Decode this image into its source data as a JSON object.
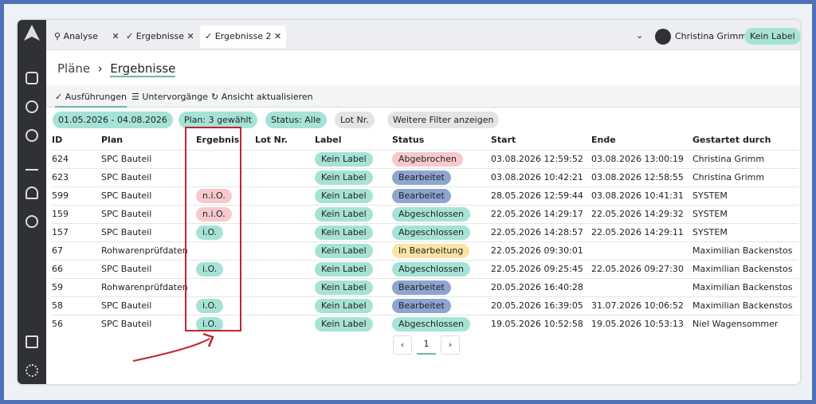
{
  "tabs": [
    "Analyse",
    "Ergebnisse",
    "Ergebnisse 2"
  ],
  "user": "Christina Grimm",
  "label_button": "Kein Label",
  "breadcrumb": [
    "Pläne",
    "Ergebnisse"
  ],
  "subtabs": [
    "Ausführungen",
    "Untervorgänge",
    "Ansicht aktualisieren"
  ],
  "filters": [
    "01.05.2026 - 04.08.2026",
    "Plan: 3 gewählt",
    "Status: Alle",
    "Lot Nr.",
    "Weitere Filter anzeigen"
  ],
  "table": {
    "columns": [
      "ID",
      "Plan",
      "Ergebnis",
      "Lot Nr.",
      "Label",
      "Status",
      "Start",
      "Ende",
      "Gestartet durch"
    ],
    "rows": [
      {
        "id": 624,
        "plan": "SPC Bauteil",
        "label": "Kein Label",
        "status": "Abgebrochen",
        "status_color": "#f7c9cc",
        "start": "03.08.2026 12:59:52",
        "end": "03.08.2026 13:00:19",
        "started_by": "Christina Grimm"
      },
      {
        "id": 623,
        "plan": "SPC Bauteil",
        "label": "Kein Label",
        "status": "Bearbeitet",
        "status_color": "#8ea5d2",
        "start": "03.08.2026 10:42:21",
        "end": "03.08.2026 12:58:55",
        "started_by": "Christina Grimm"
      },
      {
        "id": 599,
        "plan": "SPC Bauteil",
        "result": "n.i.O.",
        "result_color": "#f7c9cc",
        "label": "Kein Label",
        "status": "Bearbeitet",
        "status_color": "#8ea5d2",
        "start": "28.05.2026 12:59:44",
        "end": "03.08.2026 10:41:31",
        "started_by": "SYSTEM"
      },
      {
        "id": 159,
        "plan": "SPC Bauteil",
        "result": "n.i.O.",
        "result_color": "#f7c9cc",
        "label": "Kein Label",
        "status": "Abgeschlossen",
        "status_color": "#a6e3d6",
        "start": "22.05.2026 14:29:17",
        "end": "22.05.2026 14:29:32",
        "started_by": "SYSTEM"
      },
      {
        "id": 157,
        "plan": "SPC Bauteil",
        "result": "i.O.",
        "result_color": "#a6e3d6",
        "label": "Kein Label",
        "status": "Abgeschlossen",
        "status_color": "#a6e3d6",
        "start": "22.05.2026 14:28:57",
        "end": "22.05.2026 14:29:11",
        "started_by": "SYSTEM"
      },
      {
        "id": 67,
        "plan": "Rohwarenprüfdaten",
        "label": "Kein Label",
        "status": "In Bearbeitung",
        "status_color": "#fbe5a6",
        "start": "22.05.2026 09:30:01",
        "started_by": "Maximilian Backenstos"
      },
      {
        "id": 66,
        "plan": "SPC Bauteil",
        "result": "i.O.",
        "result_color": "#a6e3d6",
        "label": "Kein Label",
        "status": "Abgeschlossen",
        "status_color": "#a6e3d6",
        "start": "22.05.2026 09:25:45",
        "end": "22.05.2026 09:27:30",
        "started_by": "Maximilian Backenstos"
      },
      {
        "id": 59,
        "plan": "Rohwarenprüfdaten",
        "label": "Kein Label",
        "status": "Bearbeitet",
        "status_color": "#8ea5d2",
        "start": "20.05.2026 16:40:28",
        "started_by": "Maximilian Backenstos"
      },
      {
        "id": 58,
        "plan": "SPC Bauteil",
        "result": "i.O.",
        "result_color": "#a6e3d6",
        "label": "Kein Label",
        "status": "Bearbeitet",
        "status_color": "#8ea5d2",
        "start": "20.05.2026 16:39:05",
        "end": "31.07.2026 10:06:52",
        "started_by": "Maximilian Backenstos"
      },
      {
        "id": 56,
        "plan": "SPC Bauteil",
        "result": "i.O.",
        "result_color": "#a6e3d6",
        "label": "Kein Label",
        "status": "Abgeschlossen",
        "status_color": "#a6e3d6",
        "start": "19.05.2026 10:52:58",
        "end": "19.05.2026 10:53:13",
        "started_by": "Niel Wagensommer"
      }
    ]
  },
  "pagination": {
    "page": 1
  }
}
